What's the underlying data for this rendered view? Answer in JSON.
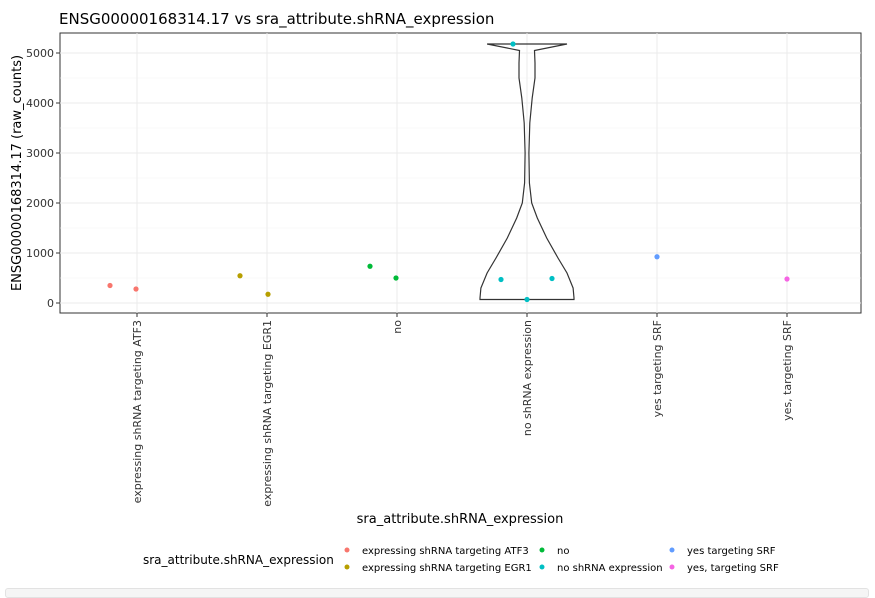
{
  "chart_data": {
    "type": "violin",
    "title": "ENSG00000168314.17 vs sra_attribute.shRNA_expression",
    "xlabel": "sra_attribute.shRNA_expression",
    "ylabel": "ENSG00000168314.17 (raw_counts)",
    "ylim": [
      -200,
      5400
    ],
    "yticks": [
      0,
      1000,
      2000,
      3000,
      4000,
      5000
    ],
    "grid": true,
    "legend_position": "bottom",
    "legend_title": "sra_attribute.shRNA_expression",
    "categories": [
      "expressing shRNA targeting ATF3",
      "expressing shRNA targeting EGR1",
      "no",
      "no shRNA expression",
      "yes targeting SRF",
      "yes, targeting SRF"
    ],
    "colors": [
      "#F8766D",
      "#B79F00",
      "#00BA38",
      "#00BFC4",
      "#619CFF",
      "#F564E3"
    ],
    "series": [
      {
        "name": "expressing shRNA targeting ATF3",
        "values": [
          350,
          280
        ]
      },
      {
        "name": "expressing shRNA targeting EGR1",
        "values": [
          545,
          175
        ]
      },
      {
        "name": "no",
        "values": [
          735,
          500
        ]
      },
      {
        "name": "no shRNA expression",
        "values": [
          5180,
          470,
          490,
          70
        ]
      },
      {
        "name": "yes targeting SRF",
        "values": [
          925
        ]
      },
      {
        "name": "yes, targeting SRF",
        "values": [
          480
        ]
      }
    ],
    "violin": {
      "category": "no shRNA expression",
      "min": 70,
      "max": 5180
    }
  }
}
